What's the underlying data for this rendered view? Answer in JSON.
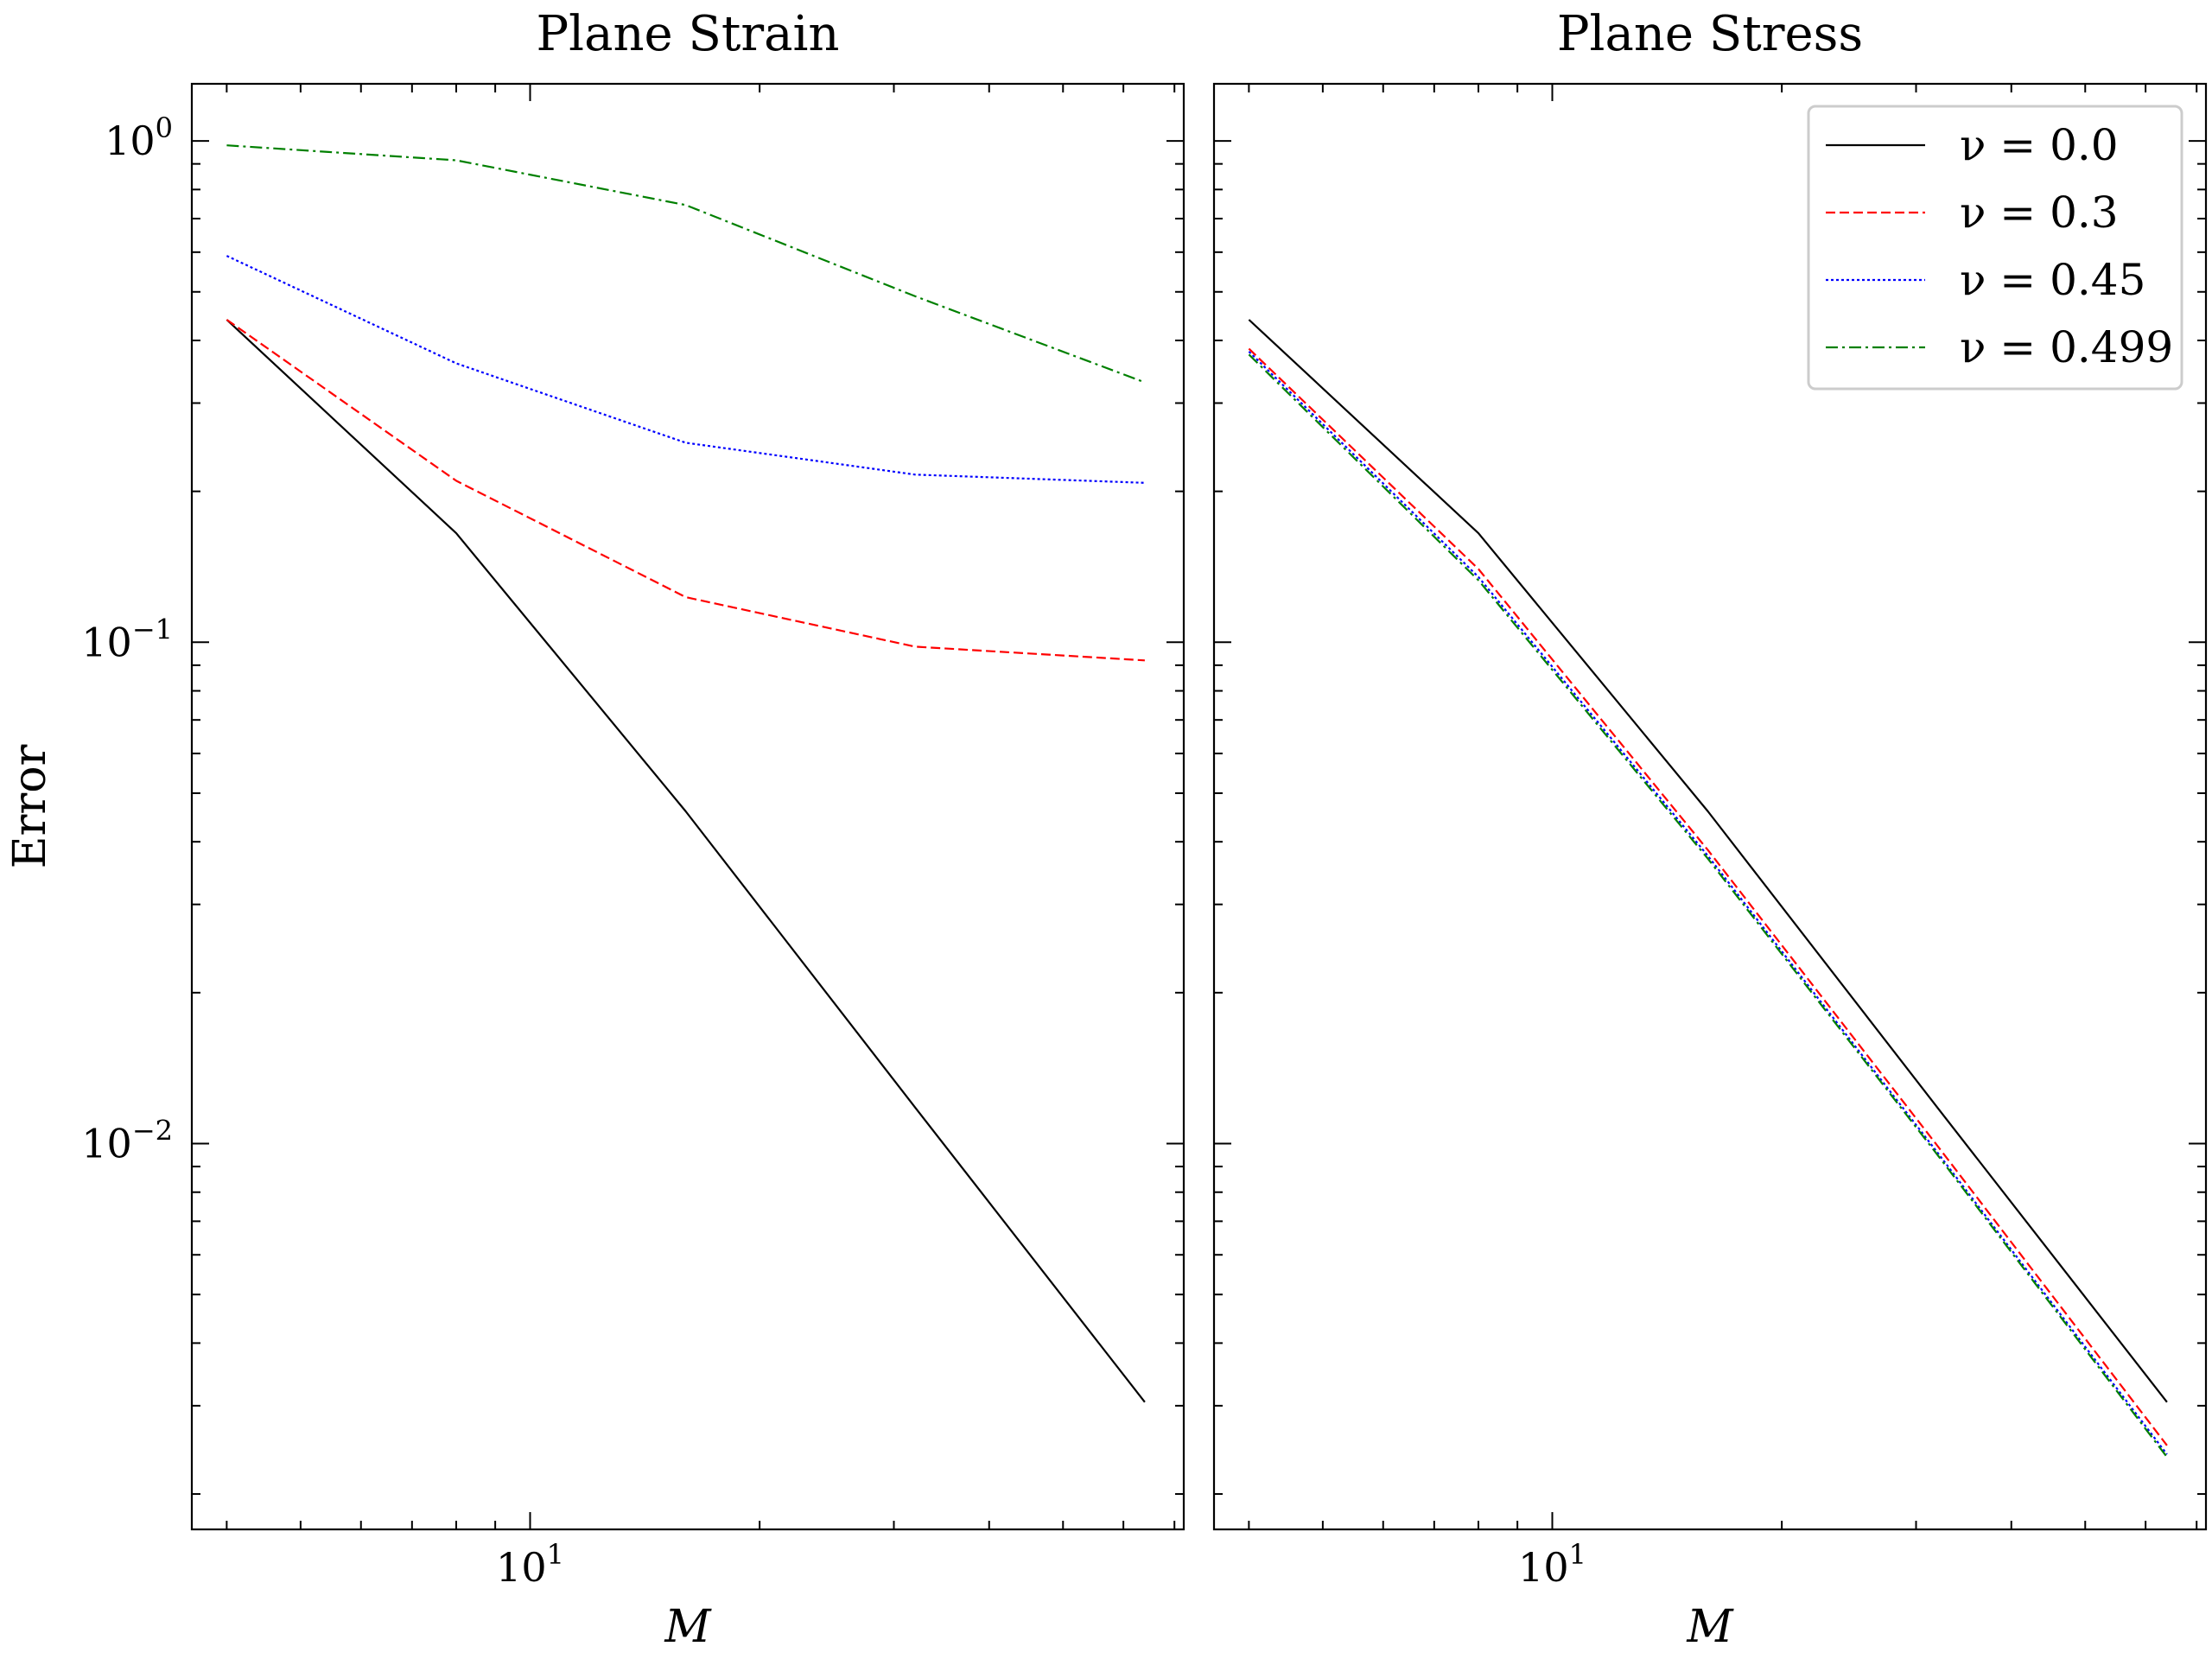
{
  "chart_data": [
    {
      "type": "line",
      "title": "Plane Strain",
      "xlabel": "M",
      "ylabel": "Error",
      "xscale": "log",
      "yscale": "log",
      "xlim": [
        3.6,
        72
      ],
      "ylim": [
        0.0017,
        1.3
      ],
      "x": [
        4,
        8,
        16,
        32,
        64
      ],
      "xticks": [
        {
          "base": "10",
          "exp": "1",
          "value": 10
        }
      ],
      "yticks": [
        {
          "base": "10",
          "exp": "0",
          "value": 1
        },
        {
          "base": "10",
          "exp": "−1",
          "value": 0.1
        },
        {
          "base": "10",
          "exp": "−2",
          "value": 0.01
        }
      ],
      "series": [
        {
          "name": "ν = 0.0",
          "color": "#000000",
          "dash": "solid",
          "values": [
            0.44,
            0.165,
            0.046,
            0.0118,
            0.00305
          ]
        },
        {
          "name": "ν = 0.3",
          "color": "#ff0000",
          "dash": "dashed",
          "values": [
            0.44,
            0.21,
            0.123,
            0.098,
            0.092
          ]
        },
        {
          "name": "ν = 0.45",
          "color": "#0000ff",
          "dash": "dotted",
          "values": [
            0.59,
            0.36,
            0.25,
            0.216,
            0.208
          ]
        },
        {
          "name": "ν = 0.499",
          "color": "#008000",
          "dash": "dashdot",
          "values": [
            0.98,
            0.915,
            0.745,
            0.49,
            0.33
          ]
        }
      ]
    },
    {
      "type": "line",
      "title": "Plane Stress",
      "xlabel": "M",
      "ylabel": "",
      "xscale": "log",
      "yscale": "log",
      "xlim": [
        3.6,
        72
      ],
      "ylim": [
        0.0017,
        1.3
      ],
      "x": [
        4,
        8,
        16,
        32,
        64
      ],
      "xticks": [
        {
          "base": "10",
          "exp": "1",
          "value": 10
        }
      ],
      "yticks": [],
      "legend_position": "top-right",
      "series": [
        {
          "name": "ν = 0.0",
          "color": "#000000",
          "dash": "solid",
          "values": [
            0.44,
            0.165,
            0.046,
            0.0118,
            0.00305
          ]
        },
        {
          "name": "ν = 0.3",
          "color": "#ff0000",
          "dash": "dashed",
          "values": [
            0.385,
            0.14,
            0.0385,
            0.0099,
            0.0025
          ]
        },
        {
          "name": "ν = 0.45",
          "color": "#0000ff",
          "dash": "dotted",
          "values": [
            0.38,
            0.135,
            0.0375,
            0.0096,
            0.0024
          ]
        },
        {
          "name": "ν = 0.499",
          "color": "#008000",
          "dash": "dashdot",
          "values": [
            0.375,
            0.133,
            0.037,
            0.0095,
            0.00237
          ]
        }
      ]
    }
  ]
}
